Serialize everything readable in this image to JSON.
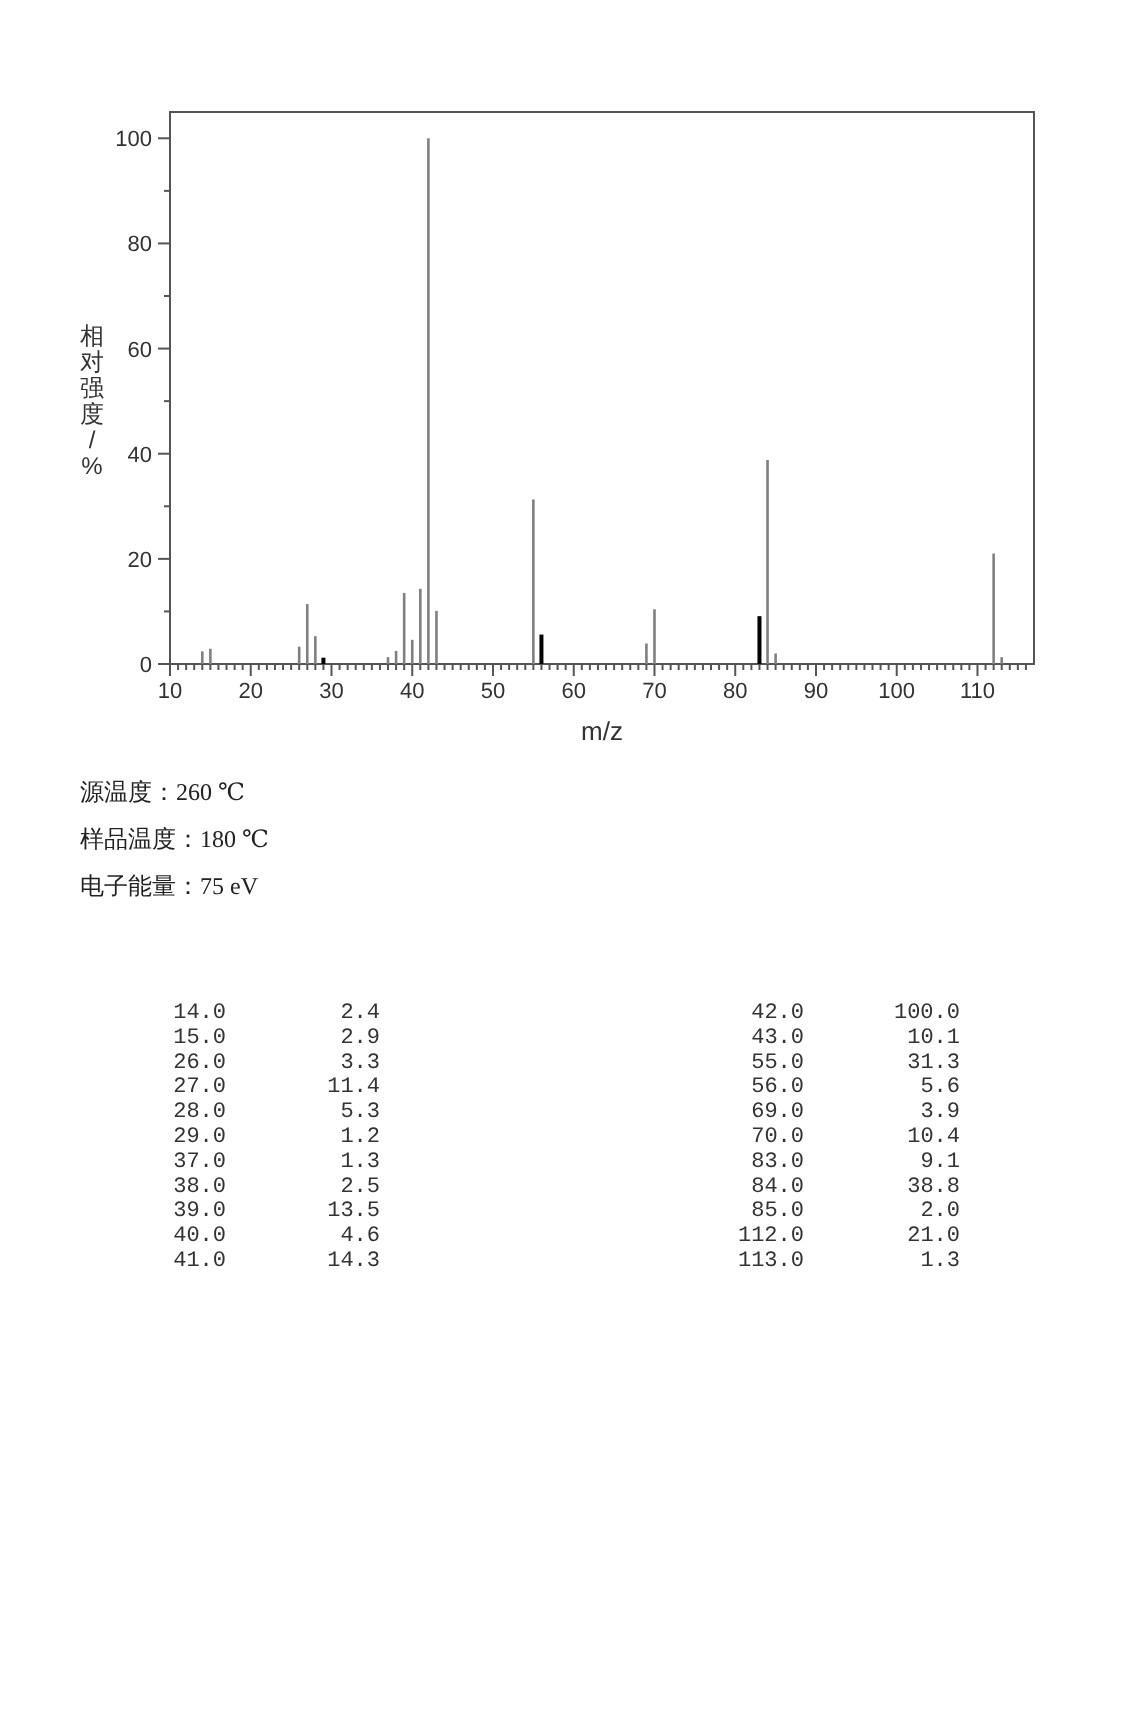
{
  "chart_data": [
    {
      "type": "bar",
      "xlabel": "m/z",
      "ylabel": "相对强度/%",
      "x": [
        14,
        15,
        26,
        27,
        28,
        29,
        37,
        38,
        39,
        40,
        41,
        42,
        43,
        55,
        56,
        69,
        70,
        83,
        84,
        85,
        112,
        113
      ],
      "values": [
        2.4,
        2.9,
        3.3,
        11.4,
        5.3,
        1.2,
        1.3,
        2.5,
        13.5,
        4.6,
        14.3,
        100.0,
        10.1,
        31.3,
        5.6,
        3.9,
        10.4,
        9.1,
        38.8,
        2.0,
        21.0,
        1.3
      ],
      "colors": [
        "#808080",
        "#808080",
        "#808080",
        "#808080",
        "#808080",
        "#000000",
        "#808080",
        "#808080",
        "#808080",
        "#808080",
        "#808080",
        "#808080",
        "#808080",
        "#808080",
        "#000000",
        "#808080",
        "#808080",
        "#000000",
        "#808080",
        "#808080",
        "#808080",
        "#808080"
      ],
      "xlim": [
        10,
        117
      ],
      "ylim": [
        0,
        105
      ],
      "xticks": [
        10,
        {
          "value": 11,
          "label": null
        },
        {
          "value": 12,
          "label": null
        },
        {
          "value": 13,
          "label": null
        },
        {
          "value": 14,
          "label": null
        },
        {
          "value": 15,
          "label": null
        },
        {
          "value": 16,
          "label": null
        },
        {
          "value": 17,
          "label": null
        },
        {
          "value": 18,
          "label": null
        },
        {
          "value": 19,
          "label": null
        },
        20,
        {
          "value": 21,
          "label": null
        },
        {
          "value": 22,
          "label": null
        },
        {
          "value": 23,
          "label": null
        },
        {
          "value": 24,
          "label": null
        },
        {
          "value": 25,
          "label": null
        },
        {
          "value": 26,
          "label": null
        },
        {
          "value": 27,
          "label": null
        },
        {
          "value": 28,
          "label": null
        },
        {
          "value": 29,
          "label": null
        },
        30,
        {
          "value": 31,
          "label": null
        },
        {
          "value": 32,
          "label": null
        },
        {
          "value": 33,
          "label": null
        },
        {
          "value": 34,
          "label": null
        },
        {
          "value": 35,
          "label": null
        },
        {
          "value": 36,
          "label": null
        },
        {
          "value": 37,
          "label": null
        },
        {
          "value": 38,
          "label": null
        },
        {
          "value": 39,
          "label": null
        },
        40,
        {
          "value": 41,
          "label": null
        },
        {
          "value": 42,
          "label": null
        },
        {
          "value": 43,
          "label": null
        },
        {
          "value": 44,
          "label": null
        },
        {
          "value": 45,
          "label": null
        },
        {
          "value": 46,
          "label": null
        },
        {
          "value": 47,
          "label": null
        },
        {
          "value": 48,
          "label": null
        },
        {
          "value": 49,
          "label": null
        },
        50,
        {
          "value": 51,
          "label": null
        },
        {
          "value": 52,
          "label": null
        },
        {
          "value": 53,
          "label": null
        },
        {
          "value": 54,
          "label": null
        },
        {
          "value": 55,
          "label": null
        },
        {
          "value": 56,
          "label": null
        },
        {
          "value": 57,
          "label": null
        },
        {
          "value": 58,
          "label": null
        },
        {
          "value": 59,
          "label": null
        },
        60,
        {
          "value": 61,
          "label": null
        },
        {
          "value": 62,
          "label": null
        },
        {
          "value": 63,
          "label": null
        },
        {
          "value": 64,
          "label": null
        },
        {
          "value": 65,
          "label": null
        },
        {
          "value": 66,
          "label": null
        },
        {
          "value": 67,
          "label": null
        },
        {
          "value": 68,
          "label": null
        },
        {
          "value": 69,
          "label": null
        },
        70,
        {
          "value": 71,
          "label": null
        },
        {
          "value": 72,
          "label": null
        },
        {
          "value": 73,
          "label": null
        },
        {
          "value": 74,
          "label": null
        },
        {
          "value": 75,
          "label": null
        },
        {
          "value": 76,
          "label": null
        },
        {
          "value": 77,
          "label": null
        },
        {
          "value": 78,
          "label": null
        },
        {
          "value": 79,
          "label": null
        },
        80,
        {
          "value": 81,
          "label": null
        },
        {
          "value": 82,
          "label": null
        },
        {
          "value": 83,
          "label": null
        },
        {
          "value": 84,
          "label": null
        },
        {
          "value": 85,
          "label": null
        },
        {
          "value": 86,
          "label": null
        },
        {
          "value": 87,
          "label": null
        },
        {
          "value": 88,
          "label": null
        },
        {
          "value": 89,
          "label": null
        },
        90,
        {
          "value": 91,
          "label": null
        },
        {
          "value": 92,
          "label": null
        },
        {
          "value": 93,
          "label": null
        },
        {
          "value": 94,
          "label": null
        },
        {
          "value": 95,
          "label": null
        },
        {
          "value": 96,
          "label": null
        },
        {
          "value": 97,
          "label": null
        },
        {
          "value": 98,
          "label": null
        },
        {
          "value": 99,
          "label": null
        },
        100,
        {
          "value": 101,
          "label": null
        },
        {
          "value": 102,
          "label": null
        },
        {
          "value": 103,
          "label": null
        },
        {
          "value": 104,
          "label": null
        },
        {
          "value": 105,
          "label": null
        },
        {
          "value": 106,
          "label": null
        },
        {
          "value": 107,
          "label": null
        },
        {
          "value": 108,
          "label": null
        },
        {
          "value": 109,
          "label": null
        },
        110,
        {
          "value": 111,
          "label": null
        },
        {
          "value": 112,
          "label": null
        },
        {
          "value": 113,
          "label": null
        },
        {
          "value": 114,
          "label": null
        },
        {
          "value": 115,
          "label": null
        },
        {
          "value": 116,
          "label": null
        }
      ],
      "yticks": [
        0,
        {
          "value": 10,
          "label": null
        },
        20,
        {
          "value": 30,
          "label": null
        },
        40,
        {
          "value": 50,
          "label": null
        },
        60,
        {
          "value": 70,
          "label": null
        },
        80,
        {
          "value": 90,
          "label": null
        },
        100
      ],
      "annotations": [
        "源温度：260 ℃",
        "样品温度：180 ℃",
        "电子能量：75 eV"
      ]
    },
    {
      "type": "other",
      "annotations": [
        "14.0",
        "2.4",
        "42.0",
        "100.0",
        "15.0",
        "2.9",
        "43.0",
        "10.1",
        "26.0",
        "3.3",
        "55.0",
        "31.3",
        "27.0",
        "11.4",
        "56.0",
        "5.6",
        "28.0",
        "5.3",
        "69.0",
        "3.9",
        "29.0",
        "1.2",
        "70.0",
        "10.4",
        "37.0",
        "1.3",
        "83.0",
        "9.1",
        "38.0",
        "2.5",
        "84.0",
        "38.8",
        "39.0",
        "13.5",
        "85.0",
        "2.0",
        "40.0",
        "4.6",
        "112.0",
        "21.0",
        "41.0",
        "14.3",
        "113.0",
        "1.3"
      ]
    }
  ]
}
